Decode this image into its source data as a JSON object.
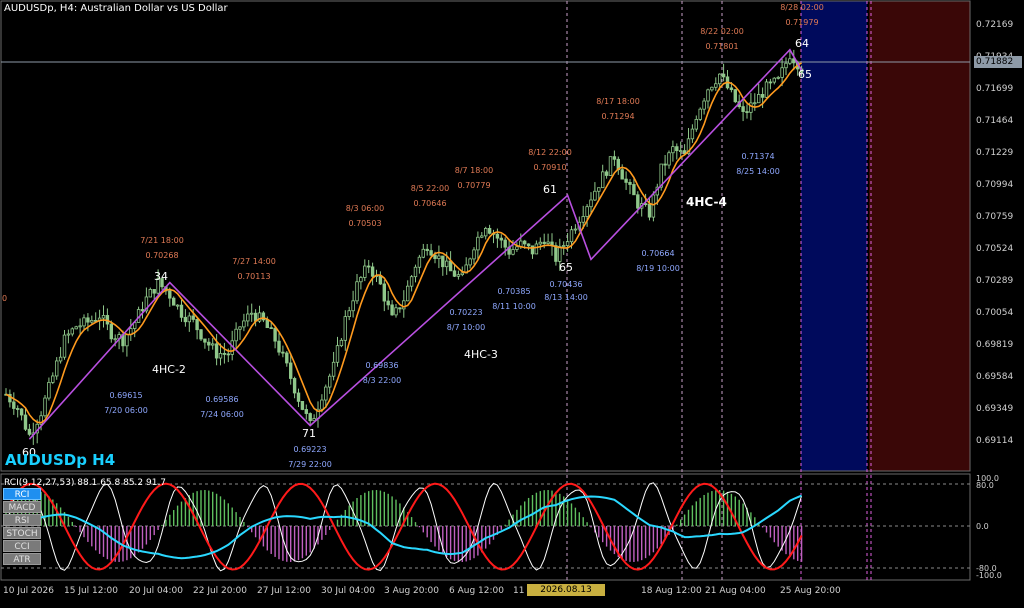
{
  "window": {
    "title": "AUDUSDp, H4:  Australian Dollar vs US Dollar",
    "symbol_label": "AUDUSDp H4",
    "current_price": "0.71882"
  },
  "colors": {
    "background": "#000000",
    "bull_candle": "#8fc78a",
    "bear_candle": "#8fc78a",
    "ma_line": "#ff9a1e",
    "zigzag": "#b84fe0",
    "future_blue": "#000a5c",
    "future_red": "#3a0707",
    "high_label": "#e07a55",
    "low_label": "#8fa8ff",
    "rci_fast": "#ffffff",
    "rci_mid": "#ff1a1a",
    "rci_slow": "#2ad8ff",
    "hist_up": "#5fbf5f",
    "hist_down": "#c060c0"
  },
  "price_axis": [
    "0.72169",
    "0.71934",
    "0.71699",
    "0.71464",
    "0.71229",
    "0.70994",
    "0.70759",
    "0.70524",
    "0.70289",
    "0.70054",
    "0.69819",
    "0.69584",
    "0.69349",
    "0.69114"
  ],
  "time_axis": [
    "10 Jul 2026",
    "15 Jul 12:00",
    "20 Jul 04:00",
    "22 Jul 20:00",
    "27 Jul 12:00",
    "30 Jul 04:00",
    "3 Aug 20:00",
    "6 Aug 12:00",
    "11",
    "18 Aug 12:00",
    "21 Aug 04:00",
    "25 Aug 20:00"
  ],
  "time_cursor": "2026.08.13 08:00",
  "left_axis_mark": "0",
  "wave_numbers": [
    "60",
    "34",
    "71",
    "61",
    "65",
    "64",
    "65"
  ],
  "wave_labels": [
    "4HC-2",
    "4HC-3",
    "4HC-4"
  ],
  "swing_labels": {
    "highs": [
      {
        "date": "7/21 18:00",
        "price": "0.70268"
      },
      {
        "date": "7/27 14:00",
        "price": "0.70113"
      },
      {
        "date": "8/3 06:00",
        "price": "0.70503"
      },
      {
        "date": "8/5 22:00",
        "price": "0.70646"
      },
      {
        "date": "8/7 18:00",
        "price": "0.70779"
      },
      {
        "date": "8/12 22:00",
        "price": "0.70910"
      },
      {
        "date": "8/17 18:00",
        "price": "0.71294"
      },
      {
        "date": "8/22 02:00",
        "price": "0.71801"
      },
      {
        "date": "8/28 02:00",
        "price": "0.71979"
      }
    ],
    "lows": [
      {
        "date": "7/20 06:00",
        "price": "0.69615"
      },
      {
        "date": "7/24 06:00",
        "price": "0.69586"
      },
      {
        "date": "7/29 22:00",
        "price": "0.69223"
      },
      {
        "date": "8/3 22:00",
        "price": "0.69836"
      },
      {
        "date": "8/7 10:00",
        "price": "0.70223"
      },
      {
        "date": "8/11 10:00",
        "price": "0.70385"
      },
      {
        "date": "8/13 14:00",
        "price": "0.70436"
      },
      {
        "date": "8/19 10:00",
        "price": "0.70664"
      },
      {
        "date": "8/25 14:00",
        "price": "0.71374"
      }
    ]
  },
  "indicator": {
    "header": "RCI(9,12,27,53) 88.1 65.8 85.2 91.7",
    "buttons": [
      {
        "label": "RCI",
        "active": true
      },
      {
        "label": "MACD",
        "active": false
      },
      {
        "label": "RSI",
        "active": false
      },
      {
        "label": "STOCH",
        "active": false
      },
      {
        "label": "CCI",
        "active": false
      },
      {
        "label": "ATR",
        "active": false
      }
    ],
    "axis": [
      "100.0",
      "80.0",
      "0.0",
      "-80.0",
      "-100.0"
    ]
  },
  "chart_data": {
    "type": "candlestick",
    "timeframe": "H4",
    "ylim": [
      0.69,
      0.723
    ],
    "close_path": [
      [
        0,
        0.6945
      ],
      [
        3,
        0.6935
      ],
      [
        6,
        0.6915
      ],
      [
        9,
        0.6932
      ],
      [
        12,
        0.6958
      ],
      [
        15,
        0.6985
      ],
      [
        18,
        0.6995
      ],
      [
        21,
        0.6998
      ],
      [
        24,
        0.7003
      ],
      [
        27,
        0.699
      ],
      [
        30,
        0.6985
      ],
      [
        33,
        0.6998
      ],
      [
        36,
        0.7015
      ],
      [
        39,
        0.7027
      ],
      [
        42,
        0.7018
      ],
      [
        45,
        0.7005
      ],
      [
        48,
        0.6998
      ],
      [
        51,
        0.6985
      ],
      [
        54,
        0.6975
      ],
      [
        57,
        0.6975
      ],
      [
        60,
        0.6995
      ],
      [
        63,
        0.7005
      ],
      [
        66,
        0.6998
      ],
      [
        69,
        0.6985
      ],
      [
        72,
        0.6965
      ],
      [
        75,
        0.6942
      ],
      [
        78,
        0.6922
      ],
      [
        81,
        0.6945
      ],
      [
        84,
        0.6965
      ],
      [
        87,
        0.7
      ],
      [
        90,
        0.7025
      ],
      [
        93,
        0.704
      ],
      [
        96,
        0.7025
      ],
      [
        99,
        0.7
      ],
      [
        102,
        0.7015
      ],
      [
        105,
        0.704
      ],
      [
        108,
        0.7055
      ],
      [
        111,
        0.7045
      ],
      [
        114,
        0.7035
      ],
      [
        117,
        0.703
      ],
      [
        120,
        0.7055
      ],
      [
        123,
        0.707
      ],
      [
        126,
        0.706
      ],
      [
        129,
        0.705
      ],
      [
        132,
        0.7055
      ],
      [
        135,
        0.705
      ],
      [
        138,
        0.706
      ],
      [
        141,
        0.7045
      ],
      [
        144,
        0.706
      ],
      [
        147,
        0.7075
      ],
      [
        150,
        0.709
      ],
      [
        153,
        0.7105
      ],
      [
        156,
        0.712
      ],
      [
        159,
        0.71
      ],
      [
        162,
        0.7085
      ],
      [
        165,
        0.7078
      ],
      [
        168,
        0.711
      ],
      [
        171,
        0.7125
      ],
      [
        174,
        0.712
      ],
      [
        177,
        0.715
      ],
      [
        180,
        0.717
      ],
      [
        183,
        0.718
      ],
      [
        186,
        0.7165
      ],
      [
        189,
        0.715
      ],
      [
        192,
        0.716
      ],
      [
        195,
        0.717
      ],
      [
        198,
        0.7175
      ],
      [
        201,
        0.7195
      ],
      [
        204,
        0.7185
      ]
    ],
    "zigzag": [
      [
        6,
        0.6912
      ],
      [
        42,
        0.7027
      ],
      [
        78,
        0.6922
      ],
      [
        144,
        0.7091
      ],
      [
        150,
        0.7044
      ],
      [
        201,
        0.7198
      ],
      [
        204,
        0.7183
      ]
    ]
  }
}
